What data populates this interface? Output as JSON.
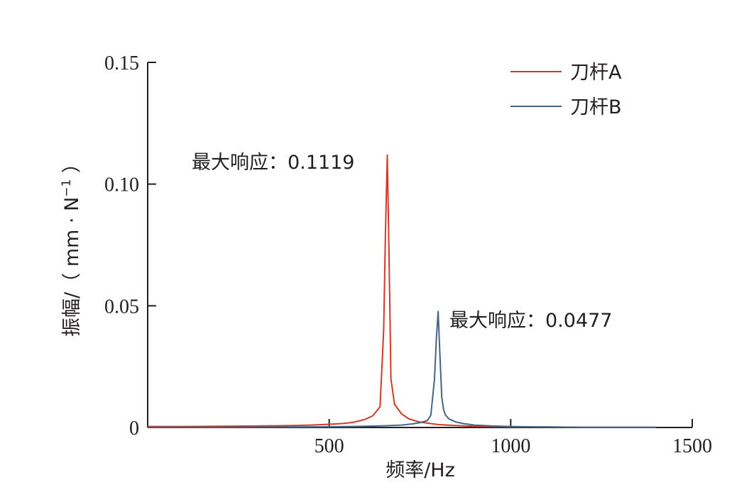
{
  "chart_data": {
    "type": "line",
    "xlabel": "频率/Hz",
    "ylabel_main": "振幅/（ mm · N",
    "ylabel_sup": "−1",
    "ylabel_close": " ）",
    "xlim": [
      0,
      1500
    ],
    "ylim": [
      0,
      0.15
    ],
    "x_ticks": [
      500,
      1000,
      1500
    ],
    "x_tick_labels": [
      "500",
      "1000",
      "1500"
    ],
    "y_ticks": [
      0,
      0.05,
      0.1,
      0.15
    ],
    "y_tick_labels": [
      "0",
      "0.05",
      "0.10",
      "0.15"
    ],
    "legend_position": "top-right",
    "grid": false,
    "series": [
      {
        "name": "刀杆A",
        "color": "#d13a2a",
        "x": [
          0,
          100,
          200,
          300,
          350,
          400,
          450,
          500,
          540,
          560,
          580,
          600,
          620,
          640,
          650,
          655,
          660,
          665,
          670,
          680,
          700,
          720,
          750,
          800,
          850,
          900,
          1000,
          1100,
          1200,
          1300,
          1400
        ],
        "y": [
          0.0004,
          0.0004,
          0.0005,
          0.0006,
          0.0007,
          0.0008,
          0.001,
          0.0013,
          0.0017,
          0.002,
          0.0026,
          0.0034,
          0.0048,
          0.0085,
          0.04,
          0.08,
          0.1119,
          0.07,
          0.02,
          0.0095,
          0.0055,
          0.0035,
          0.0022,
          0.0012,
          0.0008,
          0.0005,
          0.0003,
          0.0002,
          0.0001,
          0.0001,
          0.0001
        ]
      },
      {
        "name": "刀杆B",
        "color": "#456586",
        "x": [
          0,
          200,
          400,
          500,
          600,
          650,
          700,
          730,
          750,
          770,
          780,
          790,
          795,
          800,
          805,
          810,
          815,
          820,
          830,
          850,
          870,
          900,
          950,
          1000,
          1100,
          1200,
          1300,
          1400
        ],
        "y": [
          0.0001,
          0.0001,
          0.0002,
          0.0003,
          0.0005,
          0.0007,
          0.001,
          0.0015,
          0.002,
          0.0028,
          0.005,
          0.02,
          0.036,
          0.0477,
          0.03,
          0.0125,
          0.0075,
          0.0052,
          0.0035,
          0.0022,
          0.0016,
          0.001,
          0.0006,
          0.0004,
          0.0002,
          0.0001,
          0.0001,
          0.0001
        ]
      }
    ],
    "annotations": [
      {
        "text": "最大响应：0.1119",
        "x": 660,
        "y": 0.1119
      },
      {
        "text": "最大响应：0.0477",
        "x": 800,
        "y": 0.0477
      }
    ]
  }
}
